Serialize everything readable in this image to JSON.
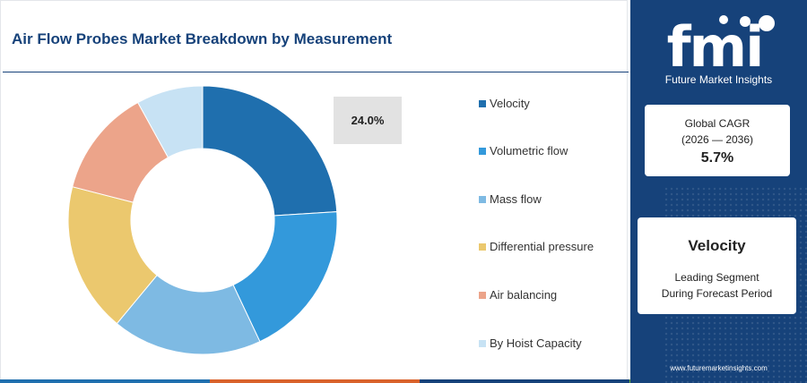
{
  "title": "Air Flow Probes Market Breakdown by Measurement",
  "callout": "24.0%",
  "chart_data": {
    "type": "pie",
    "donut": true,
    "categories": [
      "Velocity",
      "Volumetric flow",
      "Mass flow",
      "Differential pressure",
      "Air balancing",
      "By Hoist Capacity"
    ],
    "values": [
      24.0,
      19.0,
      18.0,
      18.0,
      13.0,
      8.0
    ],
    "colors": [
      "#1f6fae",
      "#3399db",
      "#7ebae3",
      "#ebc86e",
      "#eca48a",
      "#c7e2f4"
    ],
    "highlight_label": "24.0%",
    "legend_position": "right"
  },
  "panel": {
    "logo_text": "fmi",
    "logo_subtitle": "Future Market Insights",
    "cagr_label_line1": "Global CAGR",
    "cagr_label_line2": "(2026 — 2036)",
    "cagr_value": "5.7%",
    "segment_name": "Velocity",
    "segment_desc_line1": "Leading Segment",
    "segment_desc_line2": "During Forecast Period",
    "website": "www.futuremarketinsights.com"
  },
  "colors": {
    "brand_navy": "#16427a",
    "bottom_bar": [
      "#1f6fae",
      "#d9622b",
      "#16427a",
      "#6bb43a"
    ]
  }
}
